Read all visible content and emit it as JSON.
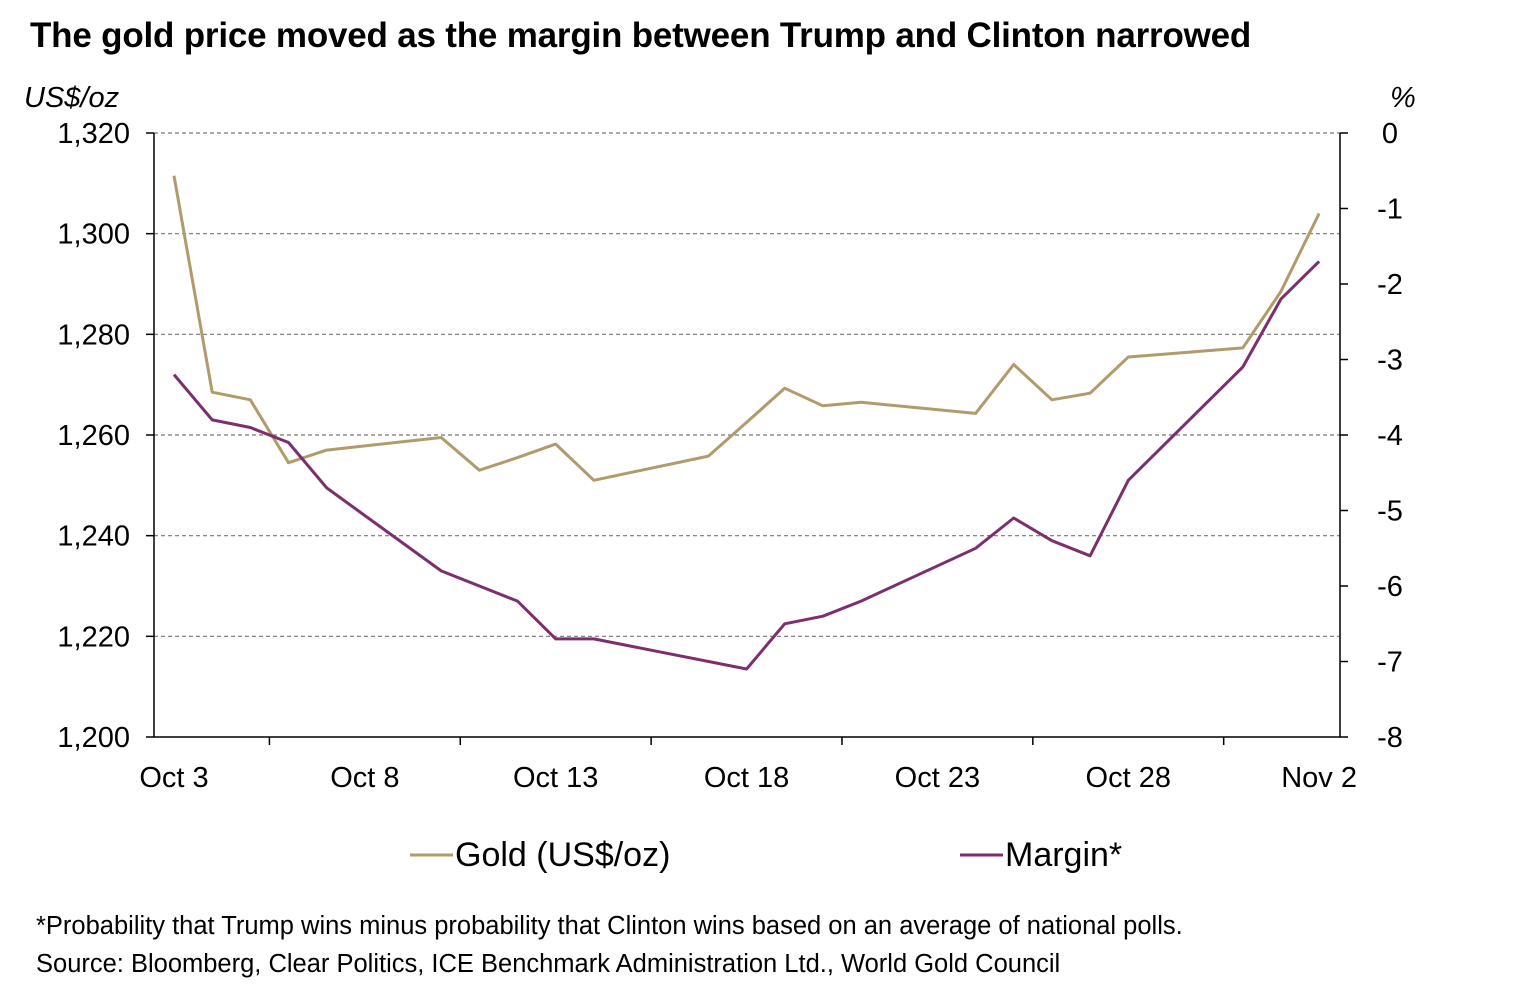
{
  "title": "The gold price moved as the margin between Trump and Clinton narrowed",
  "footnote": "*Probability that Trump wins minus probability that Clinton wins based on an average of national polls.",
  "source": "Source: Bloomberg, Clear Politics, ICE Benchmark Administration Ltd., World Gold Council",
  "colors": {
    "gold": "#B09B6A",
    "margin": "#7B2F6E",
    "grid": "#777777",
    "axis": "#000000"
  },
  "chart_data": {
    "type": "line",
    "grid": true,
    "legend_position": "bottom",
    "x_ticks": [
      "Oct 3",
      "Oct 8",
      "Oct 13",
      "Oct 18",
      "Oct 23",
      "Oct 28",
      "Nov 2"
    ],
    "y_left": {
      "unit_label": "US$/oz",
      "range": [
        1200,
        1320
      ],
      "ticks": [
        "1,200",
        "1,220",
        "1,240",
        "1,260",
        "1,280",
        "1,300",
        "1,320"
      ]
    },
    "y_right": {
      "unit_label": "%",
      "range": [
        -8,
        0
      ],
      "ticks": [
        "0",
        "-1",
        "-2",
        "-3",
        "-4",
        "-5",
        "-6",
        "-7",
        "-8"
      ]
    },
    "series": [
      {
        "name": "Gold (US$/oz)",
        "axis": "left",
        "color": "#B09B6A",
        "points": [
          {
            "x": "2016-10-03",
            "y": 1311.5
          },
          {
            "x": "2016-10-04",
            "y": 1268.5
          },
          {
            "x": "2016-10-05",
            "y": 1267.0
          },
          {
            "x": "2016-10-06",
            "y": 1254.5
          },
          {
            "x": "2016-10-07",
            "y": 1257.0
          },
          {
            "x": "2016-10-10",
            "y": 1259.5
          },
          {
            "x": "2016-10-11",
            "y": 1253.0
          },
          {
            "x": "2016-10-12",
            "y": 1255.5
          },
          {
            "x": "2016-10-13",
            "y": 1258.2
          },
          {
            "x": "2016-10-14",
            "y": 1251.0
          },
          {
            "x": "2016-10-17",
            "y": 1255.8
          },
          {
            "x": "2016-10-18",
            "y": 1262.5
          },
          {
            "x": "2016-10-19",
            "y": 1269.3
          },
          {
            "x": "2016-10-20",
            "y": 1265.8
          },
          {
            "x": "2016-10-21",
            "y": 1266.5
          },
          {
            "x": "2016-10-24",
            "y": 1264.3
          },
          {
            "x": "2016-10-25",
            "y": 1274.0
          },
          {
            "x": "2016-10-26",
            "y": 1267.0
          },
          {
            "x": "2016-10-27",
            "y": 1268.3
          },
          {
            "x": "2016-10-28",
            "y": 1275.5
          },
          {
            "x": "2016-10-31",
            "y": 1277.3
          },
          {
            "x": "2016-11-01",
            "y": 1288.5
          },
          {
            "x": "2016-11-02",
            "y": 1304.0
          }
        ]
      },
      {
        "name": "Margin*",
        "axis": "right",
        "color": "#7B2F6E",
        "points": [
          {
            "x": "2016-10-03",
            "y": -3.2
          },
          {
            "x": "2016-10-04",
            "y": -3.8
          },
          {
            "x": "2016-10-05",
            "y": -3.9
          },
          {
            "x": "2016-10-06",
            "y": -4.1
          },
          {
            "x": "2016-10-07",
            "y": -4.7
          },
          {
            "x": "2016-10-10",
            "y": -5.8
          },
          {
            "x": "2016-10-12",
            "y": -6.2
          },
          {
            "x": "2016-10-13",
            "y": -6.7
          },
          {
            "x": "2016-10-14",
            "y": -6.7
          },
          {
            "x": "2016-10-18",
            "y": -7.1
          },
          {
            "x": "2016-10-19",
            "y": -6.5
          },
          {
            "x": "2016-10-20",
            "y": -6.4
          },
          {
            "x": "2016-10-21",
            "y": -6.2
          },
          {
            "x": "2016-10-24",
            "y": -5.5
          },
          {
            "x": "2016-10-25",
            "y": -5.1
          },
          {
            "x": "2016-10-26",
            "y": -5.4
          },
          {
            "x": "2016-10-27",
            "y": -5.6
          },
          {
            "x": "2016-10-28",
            "y": -4.6
          },
          {
            "x": "2016-10-31",
            "y": -3.1
          },
          {
            "x": "2016-11-01",
            "y": -2.2
          },
          {
            "x": "2016-11-02",
            "y": -1.7
          }
        ]
      }
    ]
  }
}
